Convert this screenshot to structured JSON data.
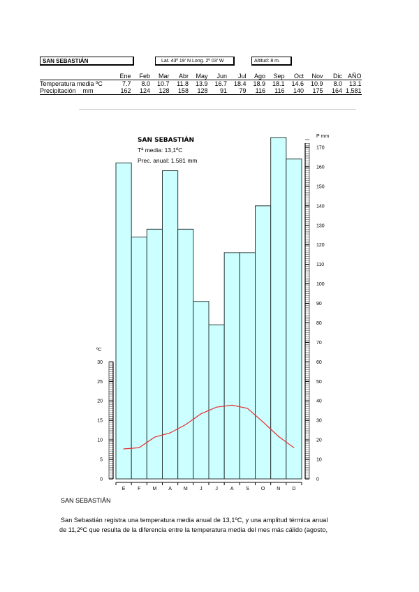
{
  "header": {
    "station": "SAN SEBASTIÁN",
    "coordinates": "Lat. 43º 19' N Long. 2º 03' W",
    "altitude": "Altitud: 8 m."
  },
  "table": {
    "months": [
      "Ene",
      "Feb",
      "Mar",
      "Abr",
      "May",
      "Jun",
      "Jul",
      "Ago",
      "Sep",
      "Oct",
      "Nov",
      "Dic",
      "AÑO"
    ],
    "rows": [
      {
        "label": "Temperatura media ºC",
        "values": [
          "7.7",
          "8.0",
          "10.7",
          "11.8",
          "13.9",
          "16.7",
          "18.4",
          "18.9",
          "18.1",
          "14.6",
          "10.9",
          "8.0",
          "13.1"
        ]
      },
      {
        "label": "Precipitación    mm",
        "values": [
          "162",
          "124",
          "128",
          "158",
          "128",
          "91",
          "79",
          "116",
          "116",
          "140",
          "175",
          "164",
          "1,581"
        ]
      }
    ]
  },
  "chart_data": {
    "type": "bar+line",
    "title": "SAN SEBASTIÁN",
    "subtitle_temp": "Tª media: 13,1ºC",
    "subtitle_prec": "Prec. anual: 1.581 mm",
    "categories": [
      "E",
      "F",
      "M",
      "A",
      "M",
      "J",
      "J",
      "A",
      "S",
      "O",
      "N",
      "D"
    ],
    "series": [
      {
        "name": "Precipitación",
        "kind": "bar",
        "axis": "right",
        "unit": "mm",
        "color": "#ccffff",
        "values": [
          162,
          124,
          128,
          158,
          128,
          91,
          79,
          116,
          116,
          140,
          175,
          164
        ]
      },
      {
        "name": "Temperatura",
        "kind": "line",
        "axis": "left",
        "unit": "ºC",
        "color": "#e83030",
        "values": [
          7.7,
          8.0,
          10.7,
          11.8,
          13.9,
          16.7,
          18.4,
          18.9,
          18.1,
          14.6,
          10.9,
          8.0
        ]
      }
    ],
    "ylabel_left": "ºC",
    "ylabel_right": "P mm",
    "ylim_left": [
      0,
      30
    ],
    "ylim_right": [
      0,
      170
    ],
    "yticks_left": [
      "0",
      "5",
      "10",
      "15",
      "20",
      "25",
      "30"
    ],
    "yticks_right": [
      "0",
      "10",
      "20",
      "30",
      "40",
      "50",
      "60",
      "70",
      "80",
      "90",
      "100",
      "110",
      "120",
      "130",
      "140",
      "150",
      "160",
      "170"
    ]
  },
  "text": {
    "section_title": "SAN SEBASTIÁN",
    "paragraph_line1": "San Sebastián registra una temperatura media anual de 13,1ºC, y una amplitud térmica anual",
    "paragraph_line2": "de 11,2ºC que resulta de la diferencia entre la temperatura media del mes más cálido (agosto,"
  }
}
